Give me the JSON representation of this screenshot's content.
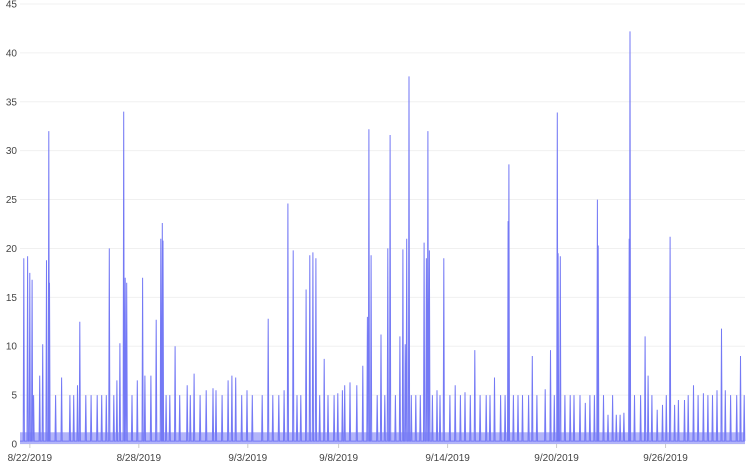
{
  "chart_data": {
    "type": "line",
    "title": "",
    "xlabel": "",
    "ylabel": "",
    "ylim": [
      0,
      45
    ],
    "xlim": [
      "2019-08-21T11:00",
      "2019-09-30T09:00"
    ],
    "grid": true,
    "line_color": "#7479f5",
    "grid_color": "#f0f0f0",
    "y_ticks": [
      0,
      5,
      10,
      15,
      20,
      25,
      30,
      35,
      40,
      45
    ],
    "x_ticks": [
      {
        "date": "2019-08-22",
        "label": "8/22/2019"
      },
      {
        "date": "2019-08-28",
        "label": "8/28/2019"
      },
      {
        "date": "2019-09-03",
        "label": "9/3/2019"
      },
      {
        "date": "2019-09-08",
        "label": "9/8/2019"
      },
      {
        "date": "2019-09-14",
        "label": "9/14/2019"
      },
      {
        "date": "2019-09-20",
        "label": "9/20/2019"
      },
      {
        "date": "2019-09-26",
        "label": "9/26/2019"
      }
    ],
    "peaks": [
      [
        "2019-08-21T16:00",
        19
      ],
      [
        "2019-08-21T21:00",
        19.2
      ],
      [
        "2019-08-22T00:00",
        17.5
      ],
      [
        "2019-08-22T03:00",
        16.8
      ],
      [
        "2019-08-22T05:00",
        5
      ],
      [
        "2019-08-22T13:00",
        7
      ],
      [
        "2019-08-22T17:00",
        10.2
      ],
      [
        "2019-08-22T22:00",
        18.8
      ],
      [
        "2019-08-23T01:00",
        32
      ],
      [
        "2019-08-23T02:00",
        16.5
      ],
      [
        "2019-08-23T10:00",
        5
      ],
      [
        "2019-08-23T18:00",
        6.8
      ],
      [
        "2019-08-24T05:00",
        5
      ],
      [
        "2019-08-24T10:00",
        5
      ],
      [
        "2019-08-24T15:00",
        6
      ],
      [
        "2019-08-24T18:00",
        12.5
      ],
      [
        "2019-08-25T02:00",
        5
      ],
      [
        "2019-08-25T09:00",
        5
      ],
      [
        "2019-08-25T17:00",
        5
      ],
      [
        "2019-08-25T23:00",
        5
      ],
      [
        "2019-08-26T05:00",
        5
      ],
      [
        "2019-08-26T09:00",
        20
      ],
      [
        "2019-08-26T15:00",
        5
      ],
      [
        "2019-08-26T19:00",
        6.5
      ],
      [
        "2019-08-26T23:00",
        10.3
      ],
      [
        "2019-08-27T04:00",
        34
      ],
      [
        "2019-08-27T06:00",
        17
      ],
      [
        "2019-08-27T08:00",
        16.5
      ],
      [
        "2019-08-27T15:00",
        5
      ],
      [
        "2019-08-27T22:00",
        6.5
      ],
      [
        "2019-08-28T05:00",
        17
      ],
      [
        "2019-08-28T08:00",
        7
      ],
      [
        "2019-08-28T16:00",
        7
      ],
      [
        "2019-08-28T23:00",
        12.7
      ],
      [
        "2019-08-29T05:00",
        21
      ],
      [
        "2019-08-29T07:00",
        22.6
      ],
      [
        "2019-08-29T08:00",
        20.8
      ],
      [
        "2019-08-29T12:00",
        5
      ],
      [
        "2019-08-29T17:00",
        5
      ],
      [
        "2019-08-30T00:00",
        10
      ],
      [
        "2019-08-30T06:00",
        5
      ],
      [
        "2019-08-30T16:00",
        6
      ],
      [
        "2019-08-30T20:00",
        5
      ],
      [
        "2019-08-31T01:00",
        7.2
      ],
      [
        "2019-08-31T09:00",
        5
      ],
      [
        "2019-08-31T17:00",
        5.5
      ],
      [
        "2019-09-01T02:00",
        5.7
      ],
      [
        "2019-09-01T06:00",
        5.5
      ],
      [
        "2019-09-01T14:00",
        5
      ],
      [
        "2019-09-01T22:00",
        6.5
      ],
      [
        "2019-09-02T03:00",
        7
      ],
      [
        "2019-09-02T08:00",
        6.8
      ],
      [
        "2019-09-02T16:00",
        5
      ],
      [
        "2019-09-02T23:00",
        5.5
      ],
      [
        "2019-09-03T06:00",
        5
      ],
      [
        "2019-09-03T19:00",
        5
      ],
      [
        "2019-09-04T03:00",
        12.8
      ],
      [
        "2019-09-04T09:00",
        5
      ],
      [
        "2019-09-04T17:00",
        5
      ],
      [
        "2019-09-05T00:00",
        5.5
      ],
      [
        "2019-09-05T05:00",
        24.6
      ],
      [
        "2019-09-05T12:00",
        19.8
      ],
      [
        "2019-09-05T17:00",
        5
      ],
      [
        "2019-09-05T22:00",
        5
      ],
      [
        "2019-09-06T05:00",
        15.8
      ],
      [
        "2019-09-06T10:00",
        19.3
      ],
      [
        "2019-09-06T14:00",
        19.6
      ],
      [
        "2019-09-06T18:00",
        19
      ],
      [
        "2019-09-06T23:00",
        5
      ],
      [
        "2019-09-07T05:00",
        8.7
      ],
      [
        "2019-09-07T10:00",
        5
      ],
      [
        "2019-09-07T18:00",
        5
      ],
      [
        "2019-09-07T23:00",
        5.2
      ],
      [
        "2019-09-08T05:00",
        5.5
      ],
      [
        "2019-09-08T08:00",
        6
      ],
      [
        "2019-09-08T15:00",
        6.3
      ],
      [
        "2019-09-09T00:00",
        6
      ],
      [
        "2019-09-09T08:00",
        8
      ],
      [
        "2019-09-09T14:00",
        13
      ],
      [
        "2019-09-09T16:00",
        32.2
      ],
      [
        "2019-09-09T19:00",
        19.3
      ],
      [
        "2019-09-10T03:00",
        5
      ],
      [
        "2019-09-10T08:00",
        11.2
      ],
      [
        "2019-09-10T13:00",
        5
      ],
      [
        "2019-09-10T17:00",
        20
      ],
      [
        "2019-09-10T20:00",
        31.6
      ],
      [
        "2019-09-11T03:00",
        5
      ],
      [
        "2019-09-11T09:00",
        11
      ],
      [
        "2019-09-11T13:00",
        19.9
      ],
      [
        "2019-09-11T16:00",
        10.2
      ],
      [
        "2019-09-11T18:00",
        21
      ],
      [
        "2019-09-11T21:00",
        37.6
      ],
      [
        "2019-09-12T00:00",
        5
      ],
      [
        "2019-09-12T06:00",
        5
      ],
      [
        "2019-09-12T12:00",
        5
      ],
      [
        "2019-09-12T17:00",
        20.6
      ],
      [
        "2019-09-12T20:00",
        19
      ],
      [
        "2019-09-12T22:00",
        32
      ],
      [
        "2019-09-13T00:00",
        19.8
      ],
      [
        "2019-09-13T04:00",
        5
      ],
      [
        "2019-09-13T10:00",
        5.5
      ],
      [
        "2019-09-13T14:00",
        5
      ],
      [
        "2019-09-13T19:00",
        19
      ],
      [
        "2019-09-14T03:00",
        5
      ],
      [
        "2019-09-14T10:00",
        6
      ],
      [
        "2019-09-14T17:00",
        5
      ],
      [
        "2019-09-14T23:00",
        5.3
      ],
      [
        "2019-09-15T06:00",
        5
      ],
      [
        "2019-09-15T12:00",
        9.6
      ],
      [
        "2019-09-15T19:00",
        5
      ],
      [
        "2019-09-16T03:00",
        5
      ],
      [
        "2019-09-16T08:00",
        5
      ],
      [
        "2019-09-16T14:00",
        6.8
      ],
      [
        "2019-09-16T22:00",
        5
      ],
      [
        "2019-09-17T04:00",
        5
      ],
      [
        "2019-09-17T08:00",
        22.8
      ],
      [
        "2019-09-17T09:00",
        28.6
      ],
      [
        "2019-09-17T15:00",
        5
      ],
      [
        "2019-09-17T21:00",
        5
      ],
      [
        "2019-09-18T03:00",
        5
      ],
      [
        "2019-09-18T11:00",
        5
      ],
      [
        "2019-09-18T16:00",
        9
      ],
      [
        "2019-09-18T22:00",
        5
      ],
      [
        "2019-09-19T09:00",
        5.6
      ],
      [
        "2019-09-19T16:00",
        9.6
      ],
      [
        "2019-09-19T21:00",
        5
      ],
      [
        "2019-09-20T01:00",
        33.9
      ],
      [
        "2019-09-20T02:00",
        19.5
      ],
      [
        "2019-09-20T05:00",
        19.2
      ],
      [
        "2019-09-20T11:00",
        5
      ],
      [
        "2019-09-20T18:00",
        5
      ],
      [
        "2019-09-20T23:00",
        5
      ],
      [
        "2019-09-21T07:00",
        5
      ],
      [
        "2019-09-21T14:00",
        4.2
      ],
      [
        "2019-09-21T20:00",
        5
      ],
      [
        "2019-09-22T02:00",
        5
      ],
      [
        "2019-09-22T06:00",
        25
      ],
      [
        "2019-09-22T07:00",
        20.3
      ],
      [
        "2019-09-22T14:00",
        5
      ],
      [
        "2019-09-22T20:00",
        3
      ],
      [
        "2019-09-23T02:00",
        5
      ],
      [
        "2019-09-23T07:00",
        3
      ],
      [
        "2019-09-23T12:00",
        3
      ],
      [
        "2019-09-23T17:00",
        3.2
      ],
      [
        "2019-09-24T00:00",
        21
      ],
      [
        "2019-09-24T01:00",
        42.2
      ],
      [
        "2019-09-24T07:00",
        5
      ],
      [
        "2019-09-24T15:00",
        5
      ],
      [
        "2019-09-24T21:00",
        11
      ],
      [
        "2019-09-25T01:00",
        7
      ],
      [
        "2019-09-25T06:00",
        5
      ],
      [
        "2019-09-25T13:00",
        3.5
      ],
      [
        "2019-09-25T20:00",
        4
      ],
      [
        "2019-09-26T01:00",
        5
      ],
      [
        "2019-09-26T06:00",
        21.2
      ],
      [
        "2019-09-26T12:00",
        4
      ],
      [
        "2019-09-26T17:00",
        4.5
      ],
      [
        "2019-09-27T01:00",
        4.5
      ],
      [
        "2019-09-27T06:00",
        5
      ],
      [
        "2019-09-27T13:00",
        6
      ],
      [
        "2019-09-27T19:00",
        5
      ],
      [
        "2019-09-28T02:00",
        5.2
      ],
      [
        "2019-09-28T08:00",
        5
      ],
      [
        "2019-09-28T14:00",
        5
      ],
      [
        "2019-09-28T20:00",
        5.5
      ],
      [
        "2019-09-29T02:00",
        11.8
      ],
      [
        "2019-09-29T07:00",
        5.5
      ],
      [
        "2019-09-29T14:00",
        5
      ],
      [
        "2019-09-29T22:00",
        5
      ],
      [
        "2019-09-30T03:00",
        9
      ],
      [
        "2019-09-30T08:00",
        5
      ]
    ]
  }
}
